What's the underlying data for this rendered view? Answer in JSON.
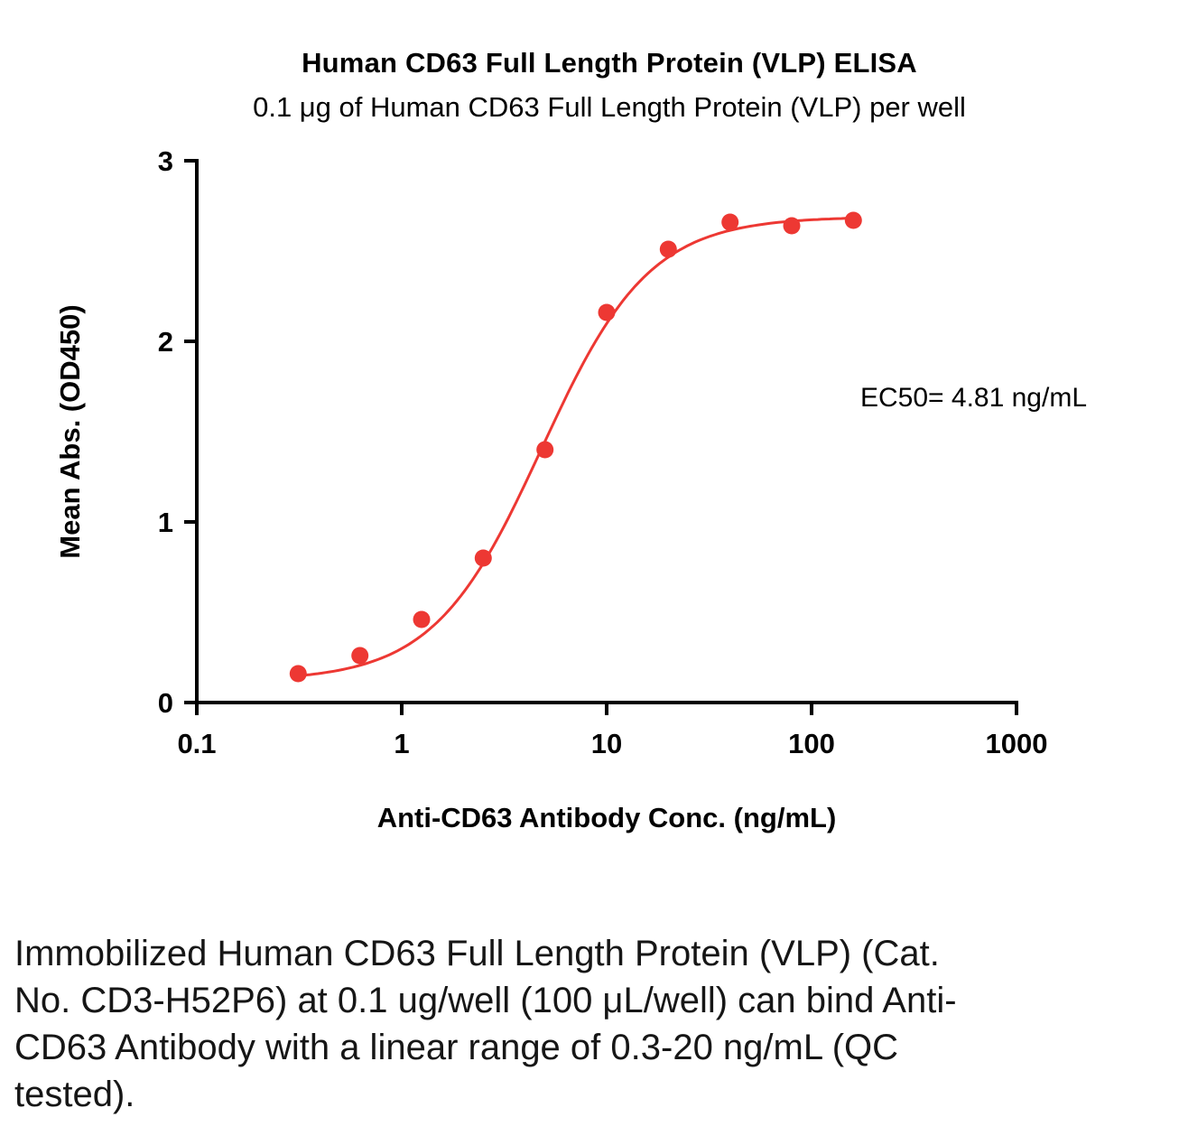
{
  "chart_data": {
    "type": "scatter",
    "title": "Human CD63 Full Length Protein (VLP) ELISA",
    "subtitle": "0.1 μg of Human CD63 Full Length Protein (VLP) per well",
    "xlabel": "Anti-CD63 Antibody Conc. (ng/mL)",
    "ylabel": "Mean Abs. (OD450)",
    "x_scale": "log10",
    "xlim": [
      0.1,
      1000
    ],
    "ylim": [
      0,
      3
    ],
    "x_ticks": [
      0.1,
      1,
      10,
      100,
      1000
    ],
    "x_tick_labels": [
      "0.1",
      "1",
      "10",
      "100",
      "1000"
    ],
    "y_ticks": [
      0,
      1,
      2,
      3
    ],
    "y_tick_labels": [
      "0",
      "1",
      "2",
      "3"
    ],
    "series": [
      {
        "name": "Anti-CD63 Antibody",
        "x": [
          0.3125,
          0.625,
          1.25,
          2.5,
          5,
          10,
          20,
          40,
          80,
          160
        ],
        "y": [
          0.16,
          0.26,
          0.46,
          0.8,
          1.4,
          2.16,
          2.51,
          2.66,
          2.64,
          2.67
        ]
      }
    ],
    "fit": {
      "model": "4PL",
      "bottom": 0.12,
      "top": 2.69,
      "ec50": 4.81,
      "hill": 1.65
    },
    "annotations": [
      {
        "text": "EC50= 4.81 ng/mL"
      }
    ],
    "grid": false,
    "legend": "none",
    "style": {
      "accent_color": "#ED3833",
      "axis_color": "#000000"
    }
  },
  "caption": "Immobilized Human CD63 Full Length Protein (VLP) (Cat. No. CD3-H52P6) at 0.1 ug/well (100 μL/well) can bind Anti-CD63 Antibody with a linear range of 0.3-20 ng/mL (QC tested)."
}
